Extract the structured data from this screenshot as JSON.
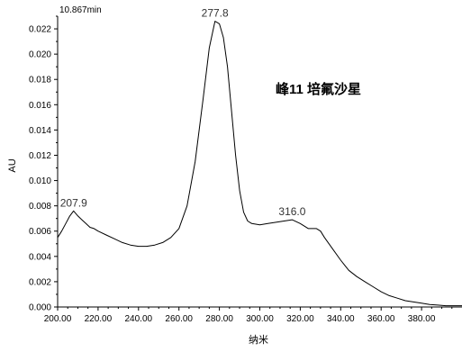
{
  "chart_data": {
    "type": "line",
    "header_time": "10.867min",
    "annotation": "峰11 培氟沙星",
    "xlabel": "纳米",
    "ylabel": "AU",
    "xlim": [
      200,
      400
    ],
    "ylim": [
      0,
      0.023
    ],
    "x_ticks": [
      "200.00",
      "220.00",
      "240.00",
      "260.00",
      "280.00",
      "300.00",
      "320.00",
      "340.00",
      "360.00",
      "380.00"
    ],
    "y_ticks": [
      "0.000",
      "0.002",
      "0.004",
      "0.006",
      "0.008",
      "0.010",
      "0.012",
      "0.014",
      "0.016",
      "0.018",
      "0.020",
      "0.022"
    ],
    "peak_labels": [
      {
        "text": "207.9",
        "x": 207.9,
        "y": 0.0076
      },
      {
        "text": "277.8",
        "x": 277.8,
        "y": 0.0226
      },
      {
        "text": "316.0",
        "x": 316.0,
        "y": 0.0069
      }
    ],
    "series": [
      {
        "color": "#000000",
        "points": [
          [
            200,
            0.0055
          ],
          [
            202,
            0.006
          ],
          [
            204,
            0.0066
          ],
          [
            206,
            0.0072
          ],
          [
            207.9,
            0.0076
          ],
          [
            210,
            0.0072
          ],
          [
            212,
            0.0069
          ],
          [
            214,
            0.0066
          ],
          [
            216,
            0.0063
          ],
          [
            218,
            0.0062
          ],
          [
            220,
            0.006
          ],
          [
            224,
            0.0057
          ],
          [
            228,
            0.0054
          ],
          [
            232,
            0.0051
          ],
          [
            236,
            0.0049
          ],
          [
            240,
            0.0048
          ],
          [
            244,
            0.0048
          ],
          [
            248,
            0.0049
          ],
          [
            252,
            0.0051
          ],
          [
            256,
            0.0055
          ],
          [
            260,
            0.0062
          ],
          [
            264,
            0.008
          ],
          [
            268,
            0.0115
          ],
          [
            272,
            0.0165
          ],
          [
            275,
            0.0205
          ],
          [
            277.8,
            0.0226
          ],
          [
            280,
            0.0224
          ],
          [
            282,
            0.0213
          ],
          [
            284,
            0.019
          ],
          [
            286,
            0.0155
          ],
          [
            288,
            0.012
          ],
          [
            290,
            0.0092
          ],
          [
            292,
            0.0075
          ],
          [
            294,
            0.0068
          ],
          [
            296,
            0.0066
          ],
          [
            300,
            0.0065
          ],
          [
            304,
            0.0066
          ],
          [
            308,
            0.0067
          ],
          [
            312,
            0.0068
          ],
          [
            316,
            0.0069
          ],
          [
            320,
            0.0066
          ],
          [
            324,
            0.0062
          ],
          [
            328,
            0.0062
          ],
          [
            330,
            0.006
          ],
          [
            332,
            0.0055
          ],
          [
            336,
            0.0046
          ],
          [
            340,
            0.0037
          ],
          [
            344,
            0.0029
          ],
          [
            348,
            0.0024
          ],
          [
            352,
            0.002
          ],
          [
            356,
            0.0016
          ],
          [
            360,
            0.0012
          ],
          [
            364,
            0.0009
          ],
          [
            368,
            0.0007
          ],
          [
            372,
            0.0005
          ],
          [
            376,
            0.0004
          ],
          [
            380,
            0.0003
          ],
          [
            384,
            0.0002
          ],
          [
            388,
            0.00015
          ],
          [
            392,
            0.0001
          ],
          [
            396,
            0.0001
          ],
          [
            400,
            0.0001
          ]
        ]
      }
    ]
  }
}
